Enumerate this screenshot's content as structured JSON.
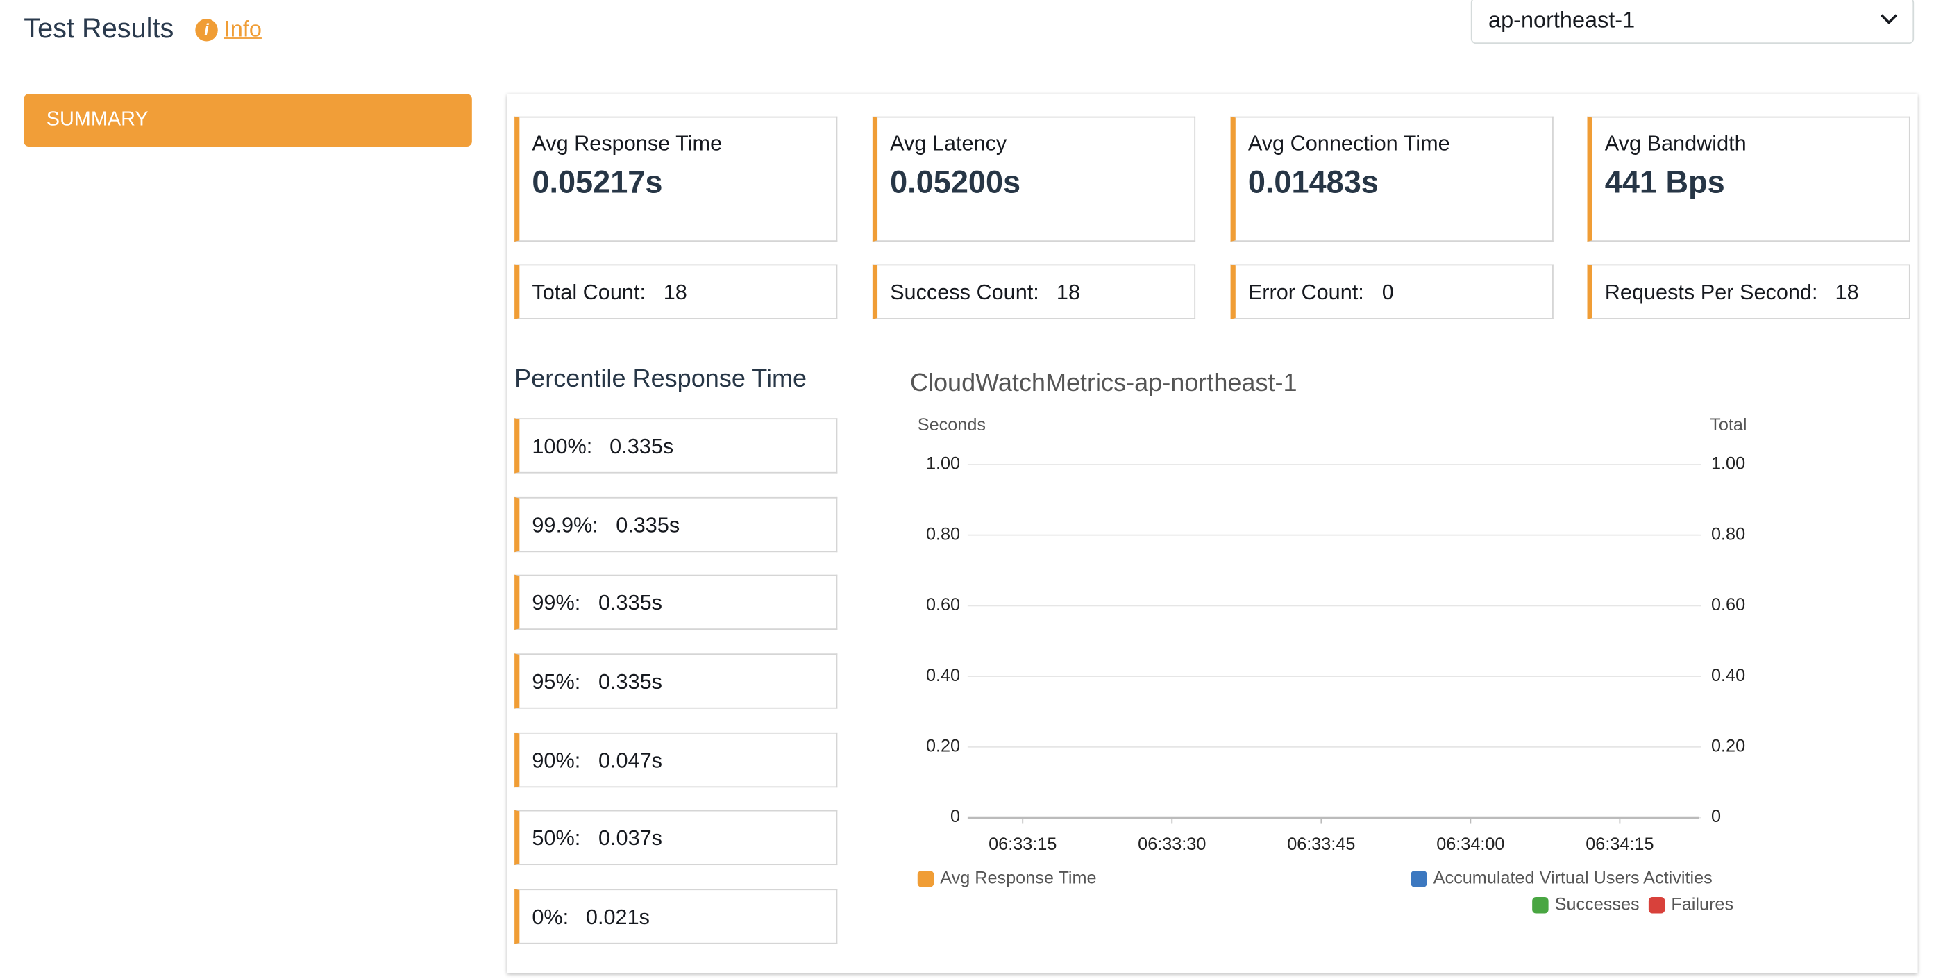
{
  "header": {
    "title": "Test Results",
    "info": "Info"
  },
  "region": "ap-northeast-1",
  "sidebar": {
    "tab": "SUMMARY"
  },
  "metrics": [
    {
      "label": "Avg Response Time",
      "value": "0.05217s"
    },
    {
      "label": "Avg Latency",
      "value": "0.05200s"
    },
    {
      "label": "Avg Connection Time",
      "value": "0.01483s"
    },
    {
      "label": "Avg Bandwidth",
      "value": "441 Bps"
    }
  ],
  "counts": [
    {
      "label": "Total Count:",
      "value": 18
    },
    {
      "label": "Success Count:",
      "value": 18
    },
    {
      "label": "Error Count:",
      "value": 0
    },
    {
      "label": "Requests Per Second:",
      "value": 18
    }
  ],
  "percentiles": {
    "title": "Percentile Response Time",
    "items": [
      {
        "label": "100%:",
        "value": "0.335s"
      },
      {
        "label": "99.9%:",
        "value": "0.335s"
      },
      {
        "label": "99%:",
        "value": "0.335s"
      },
      {
        "label": "95%:",
        "value": "0.335s"
      },
      {
        "label": "90%:",
        "value": "0.047s"
      },
      {
        "label": "50%:",
        "value": "0.037s"
      },
      {
        "label": "0%:",
        "value": "0.021s"
      }
    ]
  },
  "chart": {
    "title": "CloudWatchMetrics-ap-northeast-1",
    "y_label": "Seconds",
    "y2_label": "Total",
    "ylim": [
      0,
      1
    ],
    "yticks": [
      0,
      {
        "value": 0.2,
        "label": "0.20"
      },
      {
        "value": 0.4,
        "label": "0.40"
      },
      {
        "value": 0.6,
        "label": "0.60"
      },
      {
        "value": 0.8,
        "label": "0.80"
      },
      {
        "value": 1,
        "label": "1.00"
      }
    ],
    "y2lim": [
      0,
      1
    ],
    "y2ticks": [
      0,
      {
        "value": 0.2,
        "label": "0.20"
      },
      {
        "value": 0.4,
        "label": "0.40"
      },
      {
        "value": 0.6,
        "label": "0.60"
      },
      {
        "value": 0.8,
        "label": "0.80"
      },
      {
        "value": 1,
        "label": "1.00"
      }
    ],
    "xticks": [
      "06:33:15",
      "06:33:30",
      "06:33:45",
      "06:34:00",
      "06:34:15"
    ],
    "legend": [
      {
        "name": "Avg Response Time",
        "color": "#f09d35"
      },
      {
        "name": "Accumulated Virtual Users Activities",
        "color": "#3c78c0"
      },
      {
        "name": "Successes",
        "color": "#49a642"
      },
      {
        "name": "Failures",
        "color": "#d8413b"
      }
    ]
  }
}
